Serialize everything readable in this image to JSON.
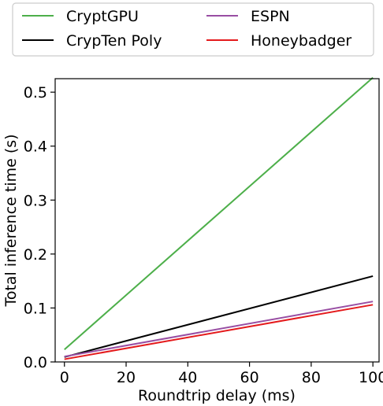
{
  "chart_data": {
    "type": "line",
    "title": "",
    "xlabel": "Roundtrip delay (ms)",
    "ylabel": "Total inference time (s)",
    "xlim": [
      -3,
      102
    ],
    "ylim": [
      0,
      0.525
    ],
    "xticks": [
      0,
      20,
      40,
      60,
      80,
      100
    ],
    "xtick_labels": [
      "0",
      "20",
      "40",
      "60",
      "80",
      "100"
    ],
    "yticks": [
      0.0,
      0.1,
      0.2,
      0.3,
      0.4,
      0.5
    ],
    "ytick_labels": [
      "0.0",
      "0.1",
      "0.2",
      "0.3",
      "0.4",
      "0.5"
    ],
    "grid": false,
    "legend_position": "top, outside plot, 2 columns",
    "series": [
      {
        "name": "CryptGPU",
        "color": "#4daf4a",
        "x": [
          0,
          100
        ],
        "y": [
          0.023,
          0.527
        ]
      },
      {
        "name": "CrypTen Poly",
        "color": "#000000",
        "x": [
          0,
          100
        ],
        "y": [
          0.009,
          0.159
        ]
      },
      {
        "name": "ESPN",
        "color": "#984ea3",
        "x": [
          0,
          100
        ],
        "y": [
          0.01,
          0.112
        ]
      },
      {
        "name": "Honeybadger",
        "color": "#e41a1c",
        "x": [
          0,
          100
        ],
        "y": [
          0.005,
          0.106
        ]
      }
    ]
  }
}
